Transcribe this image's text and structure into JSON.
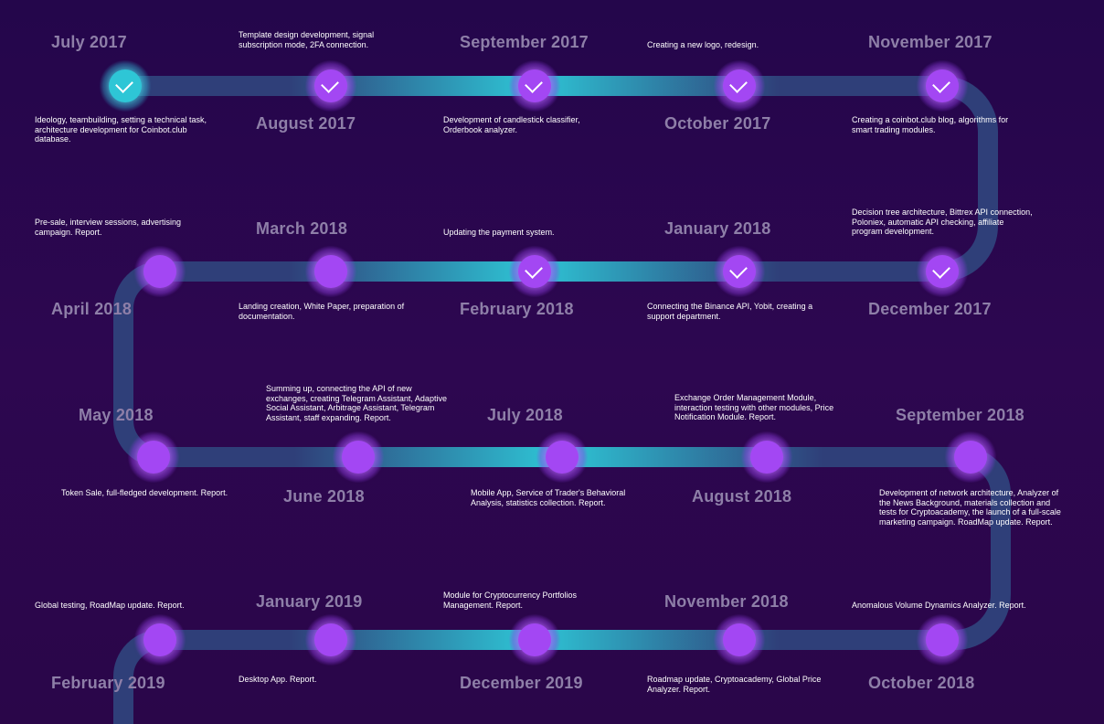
{
  "milestones": [
    {
      "id": "jul-2017",
      "date": "July 2017",
      "desc": "Ideology, teambuilding, setting a technical task, architecture development for Coinbot.club database.",
      "done": true,
      "first": true
    },
    {
      "id": "aug-2017",
      "date": "August 2017",
      "desc": "Template design development, signal subscription mode, 2FA connection.",
      "done": true
    },
    {
      "id": "sep-2017",
      "date": "September 2017",
      "desc": "Development of candlestick classifier, Orderbook analyzer.",
      "done": true
    },
    {
      "id": "oct-2017",
      "date": "October 2017",
      "desc": "Creating a new logo, redesign.",
      "done": true
    },
    {
      "id": "nov-2017",
      "date": "November 2017",
      "desc": "Creating a coinbot.club blog, algorithms for smart trading modules.",
      "done": true
    },
    {
      "id": "dec-2017",
      "date": "December 2017",
      "desc": "Decision tree architecture, Bittrex API connection, Poloniex, automatic API checking, affiliate program development.",
      "done": true
    },
    {
      "id": "jan-2018",
      "date": "January 2018",
      "desc": "Connecting the Binance API, Yobit, creating a support department.",
      "done": true
    },
    {
      "id": "feb-2018",
      "date": "February 2018",
      "desc": "Updating the payment system.",
      "done": true
    },
    {
      "id": "mar-2018",
      "date": "March 2018",
      "desc": "Landing creation, White Paper, preparation of documentation.",
      "done": false
    },
    {
      "id": "apr-2018",
      "date": "April 2018",
      "desc": "Pre-sale, interview sessions, advertising campaign. Report.",
      "done": false
    },
    {
      "id": "may-2018",
      "date": "May 2018",
      "desc": "Token Sale, full-fledged development. Report.",
      "done": false
    },
    {
      "id": "jun-2018",
      "date": "June 2018",
      "desc": "Summing up, connecting the API of new exchanges, creating Telegram Assistant, Adaptive Social Assistant, Arbitrage Assistant, Telegram Assistant, staff expanding. Report.",
      "done": false
    },
    {
      "id": "jul-2018",
      "date": "July 2018",
      "desc": "Mobile App, Service of Trader's Behavioral Analysis, statistics collection. Report.",
      "done": false
    },
    {
      "id": "aug-2018",
      "date": "August 2018",
      "desc": "Exchange Order Management Module, interaction testing with other modules, Price Notification Module. Report.",
      "done": false
    },
    {
      "id": "sep-2018",
      "date": "September 2018",
      "desc": "Development of network architecture, Analyzer of the News Background, materials collection and tests for Cryptoacademy, the launch of a full-scale marketing campaign. RoadMap update. Report.",
      "done": false
    },
    {
      "id": "oct-2018",
      "date": "October 2018",
      "desc": "Anomalous Volume Dynamics Analyzer. Report.",
      "done": false
    },
    {
      "id": "nov-2018",
      "date": "November 2018",
      "desc": "Roadmap update, Cryptoacademy, Global Price Analyzer. Report.",
      "done": false
    },
    {
      "id": "dec-2019",
      "date": "December 2019",
      "desc": "Module for Cryptocurrency Portfolios Management. Report.",
      "done": false
    },
    {
      "id": "jan-2019",
      "date": "January 2019",
      "desc": "Desktop App. Report.",
      "done": false
    },
    {
      "id": "feb-2019",
      "date": "February 2019",
      "desc": "Global testing, RoadMap update. Report.",
      "done": false
    }
  ],
  "colors": {
    "background": "#2a0649",
    "track_dark": "#2f3f79",
    "track_bright": "#2ec6d6",
    "node": "#a347f3",
    "date_text": "#8e7fa8",
    "desc_text": "#ffffff"
  }
}
